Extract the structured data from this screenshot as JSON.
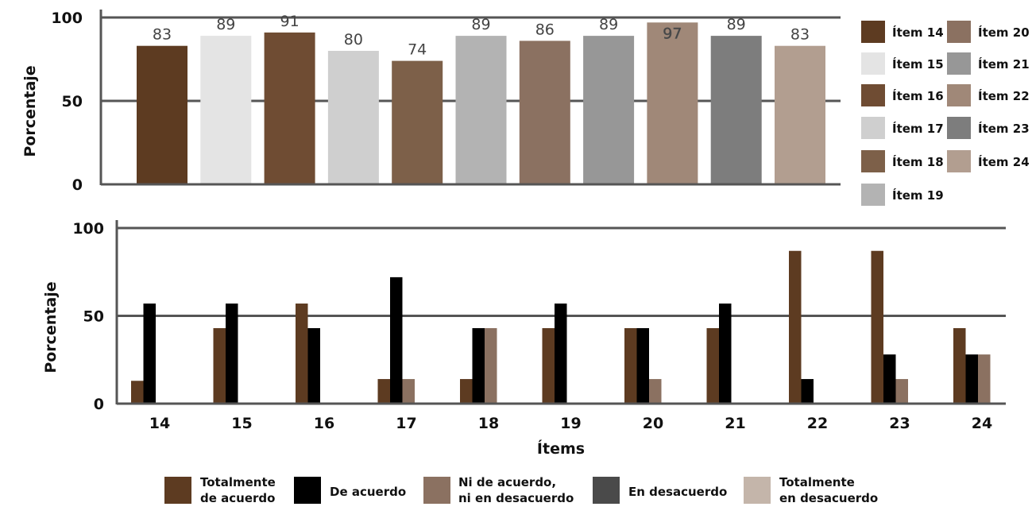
{
  "chart_data": [
    {
      "type": "bar",
      "title": "",
      "xlabel": "",
      "ylabel": "Porcentaje",
      "ylim": [
        0,
        100
      ],
      "yticks": [
        0,
        50,
        100
      ],
      "grid": true,
      "legend_position": "right",
      "categories": [
        "Ítem 14",
        "Ítem 15",
        "Ítem 16",
        "Ítem 17",
        "Ítem 18",
        "Ítem 19",
        "Ítem 20",
        "Ítem 21",
        "Ítem 22",
        "Ítem 23",
        "Ítem 24"
      ],
      "values": [
        83,
        89,
        91,
        80,
        74,
        89,
        86,
        89,
        97,
        89,
        83
      ],
      "value_labels": [
        "83",
        "89",
        "91",
        "80",
        "74",
        "89",
        "86",
        "89",
        "97",
        "89",
        "83"
      ],
      "colors": [
        "#5d3b21",
        "#e4e4e4",
        "#6f4c33",
        "#cfcfcf",
        "#7d6049",
        "#b3b3b3",
        "#8b7161",
        "#979797",
        "#a08878",
        "#7d7d7d",
        "#b29e90"
      ]
    },
    {
      "type": "bar",
      "title": "",
      "xlabel": "Ítems",
      "ylabel": "Porcentaje",
      "ylim": [
        0,
        100
      ],
      "yticks": [
        0,
        50,
        100
      ],
      "grid": true,
      "legend_position": "bottom",
      "categories": [
        "14",
        "15",
        "16",
        "17",
        "18",
        "19",
        "20",
        "21",
        "22",
        "23",
        "24"
      ],
      "series": [
        {
          "name": "Totalmente de acuerdo",
          "name_lines": [
            "Totalmente",
            "de acuerdo"
          ],
          "color": "#5d3b21",
          "values": [
            13,
            43,
            57,
            14,
            14,
            43,
            43,
            43,
            87,
            87,
            43
          ]
        },
        {
          "name": "De acuerdo",
          "name_lines": [
            "De acuerdo"
          ],
          "color": "#000000",
          "values": [
            57,
            57,
            43,
            72,
            43,
            57,
            43,
            57,
            14,
            28,
            28
          ]
        },
        {
          "name": "Ni de acuerdo, ni en desacuerdo",
          "name_lines": [
            "Ni de acuerdo,",
            "ni en desacuerdo"
          ],
          "color": "#8b7161",
          "values": [
            0,
            0,
            0,
            14,
            43,
            0,
            14,
            0,
            0,
            14,
            28
          ]
        },
        {
          "name": "En desacuerdo",
          "name_lines": [
            "En desacuerdo"
          ],
          "color": "#4a4a4a",
          "values": [
            0,
            0,
            0,
            0,
            0,
            0,
            0,
            0,
            0,
            0,
            0
          ]
        },
        {
          "name": "Totalmente en desacuerdo",
          "name_lines": [
            "Totalmente",
            "en desacuerdo"
          ],
          "color": "#c4b5aa",
          "values": [
            0,
            0,
            0,
            0,
            0,
            0,
            0,
            0,
            0,
            0,
            0
          ]
        }
      ]
    }
  ]
}
